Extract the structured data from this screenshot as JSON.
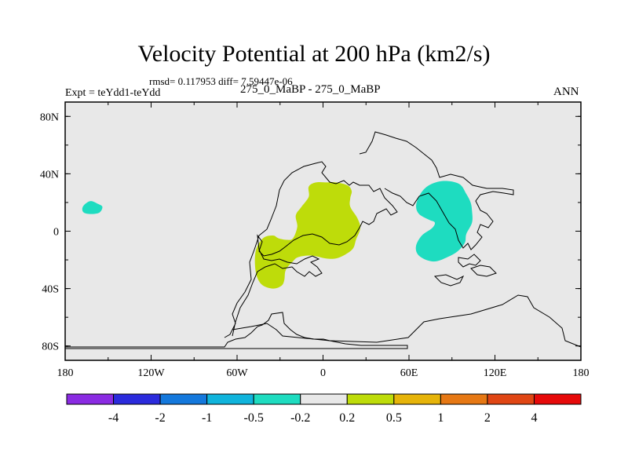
{
  "header": {
    "title": "Velocity Potential at 200 hPa (km2/s)",
    "stats": "rmsd= 0.117953 diff= 7.59447e-06",
    "expt": "Expt = teYdd1-teYdd",
    "cases": "275_0_MaBP - 275_0_MaBP",
    "season": "ANN"
  },
  "chart_data": {
    "type": "contour-map",
    "title": "Velocity Potential at 200 hPa (km2/s)",
    "units": "km2/s",
    "xlim": [
      -180,
      180
    ],
    "ylim": [
      -90,
      90
    ],
    "x_ticks": [
      {
        "value": -180,
        "label": "180"
      },
      {
        "value": -120,
        "label": "120W"
      },
      {
        "value": -60,
        "label": "60W"
      },
      {
        "value": 0,
        "label": "0"
      },
      {
        "value": 60,
        "label": "60E"
      },
      {
        "value": 120,
        "label": "120E"
      },
      {
        "value": 180,
        "label": "180"
      }
    ],
    "y_ticks": [
      {
        "value": 80,
        "label": "80N"
      },
      {
        "value": 40,
        "label": "40N"
      },
      {
        "value": 0,
        "label": "0"
      },
      {
        "value": -40,
        "label": "40S"
      },
      {
        "value": -80,
        "label": "80S"
      }
    ],
    "colorbar": {
      "colors": [
        "#8a2be2",
        "#2b2bdc",
        "#1478dc",
        "#10b4dc",
        "#1edcc0",
        "#e8e8e8",
        "#bedc0a",
        "#e6b40a",
        "#e67814",
        "#e04614",
        "#e60a0a"
      ],
      "labels": [
        "-4",
        "-2",
        "-1",
        "-0.5",
        "-0.2",
        "0.2",
        "0.5",
        "1",
        "2",
        "4"
      ]
    },
    "regions": [
      {
        "name": "cyan-west-pacific",
        "fill": "#1edcc0",
        "range": "-0.5 to -0.2",
        "points": [
          [
            -166,
            19
          ],
          [
            -162,
            21
          ],
          [
            -157,
            19
          ],
          [
            -154,
            17
          ],
          [
            -156,
            13
          ],
          [
            -162,
            12
          ],
          [
            -167,
            13
          ],
          [
            -168,
            16
          ]
        ]
      },
      {
        "name": "cyan-asia",
        "fill": "#1edcc0",
        "range": "-0.5 to -0.2",
        "points": [
          [
            68,
            26
          ],
          [
            74,
            32
          ],
          [
            84,
            35
          ],
          [
            95,
            33
          ],
          [
            100,
            26
          ],
          [
            103,
            20
          ],
          [
            104,
            14
          ],
          [
            104,
            6
          ],
          [
            100,
            -2
          ],
          [
            99,
            -8
          ],
          [
            94,
            -14
          ],
          [
            87,
            -18
          ],
          [
            79,
            -21
          ],
          [
            72,
            -20
          ],
          [
            66,
            -16
          ],
          [
            65,
            -10
          ],
          [
            69,
            -3
          ],
          [
            76,
            2
          ],
          [
            78,
            6
          ],
          [
            74,
            8
          ],
          [
            67,
            12
          ],
          [
            65,
            18
          ]
        ]
      },
      {
        "name": "green-atlantic",
        "fill": "#bedc0a",
        "range": "0.2 to 0.5",
        "points": [
          [
            -10,
            31
          ],
          [
            -5,
            34
          ],
          [
            3,
            34
          ],
          [
            9,
            34
          ],
          [
            17,
            32
          ],
          [
            20,
            28
          ],
          [
            19,
            23
          ],
          [
            19,
            17
          ],
          [
            24,
            9
          ],
          [
            26,
            2
          ],
          [
            23,
            -6
          ],
          [
            21,
            -12
          ],
          [
            16,
            -16
          ],
          [
            9,
            -19
          ],
          [
            2,
            -19
          ],
          [
            -8,
            -17
          ],
          [
            -17,
            -18
          ],
          [
            -21,
            -21
          ],
          [
            -26,
            -27
          ],
          [
            -27,
            -34
          ],
          [
            -29,
            -38
          ],
          [
            -35,
            -40
          ],
          [
            -43,
            -37
          ],
          [
            -47,
            -28
          ],
          [
            -47,
            -14
          ],
          [
            -42,
            -5
          ],
          [
            -35,
            -3
          ],
          [
            -31,
            -5
          ],
          [
            -25,
            -6
          ],
          [
            -21,
            -5
          ],
          [
            -18,
            3
          ],
          [
            -19,
            11
          ],
          [
            -15,
            17
          ],
          [
            -10,
            24
          ]
        ]
      }
    ],
    "land_outlines_note": "continental outlines drawn as black coastline polylines"
  }
}
